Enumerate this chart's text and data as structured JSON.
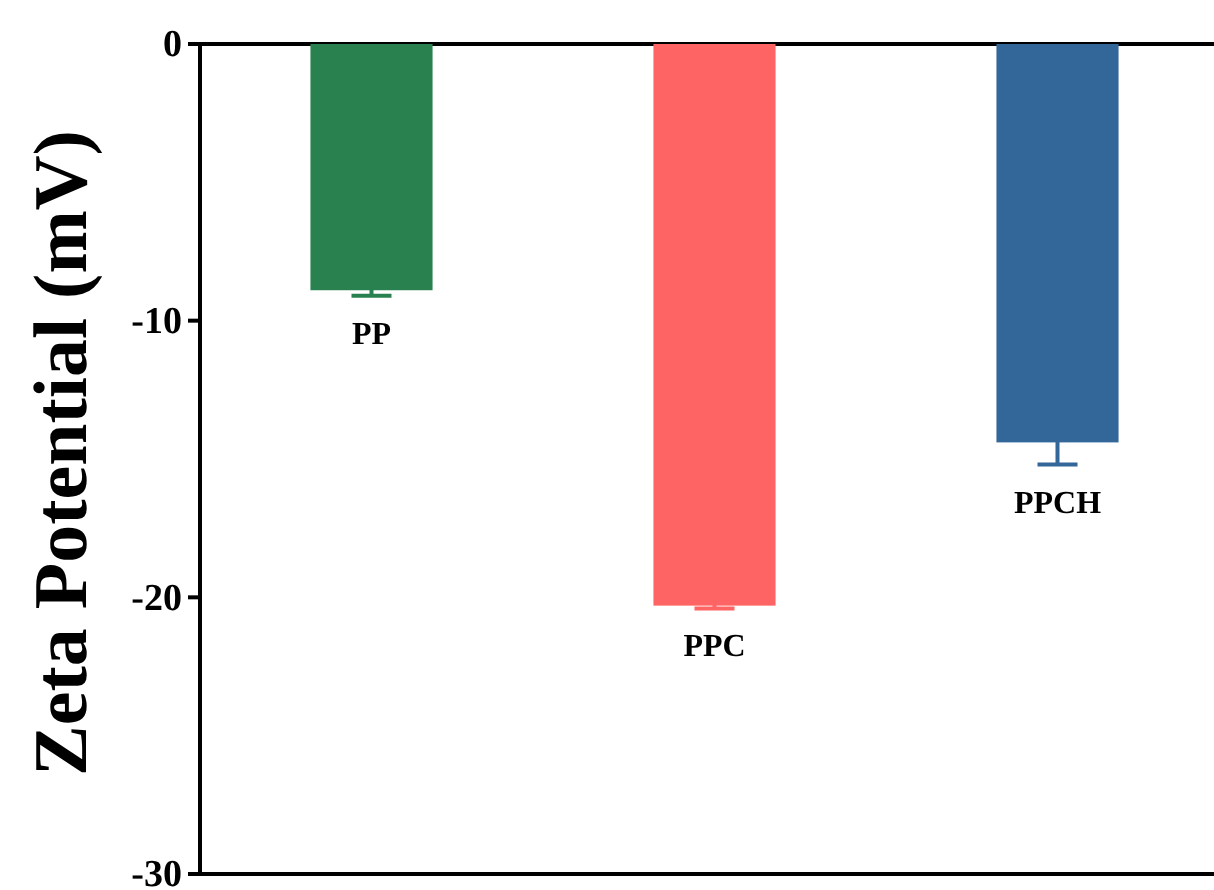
{
  "chart_data": {
    "type": "bar",
    "ylabel": "Zeta Potential (mV)",
    "categories": [
      "PP",
      "PPC",
      "PPCH"
    ],
    "values": [
      -8.9,
      -20.3,
      -14.4
    ],
    "errors": [
      0.2,
      0.1,
      0.8
    ],
    "colors": [
      "#2a8150",
      "#ff6464",
      "#336699"
    ],
    "ylim": [
      -30,
      0
    ],
    "yticks": [
      -30,
      -20,
      -10,
      0
    ]
  }
}
